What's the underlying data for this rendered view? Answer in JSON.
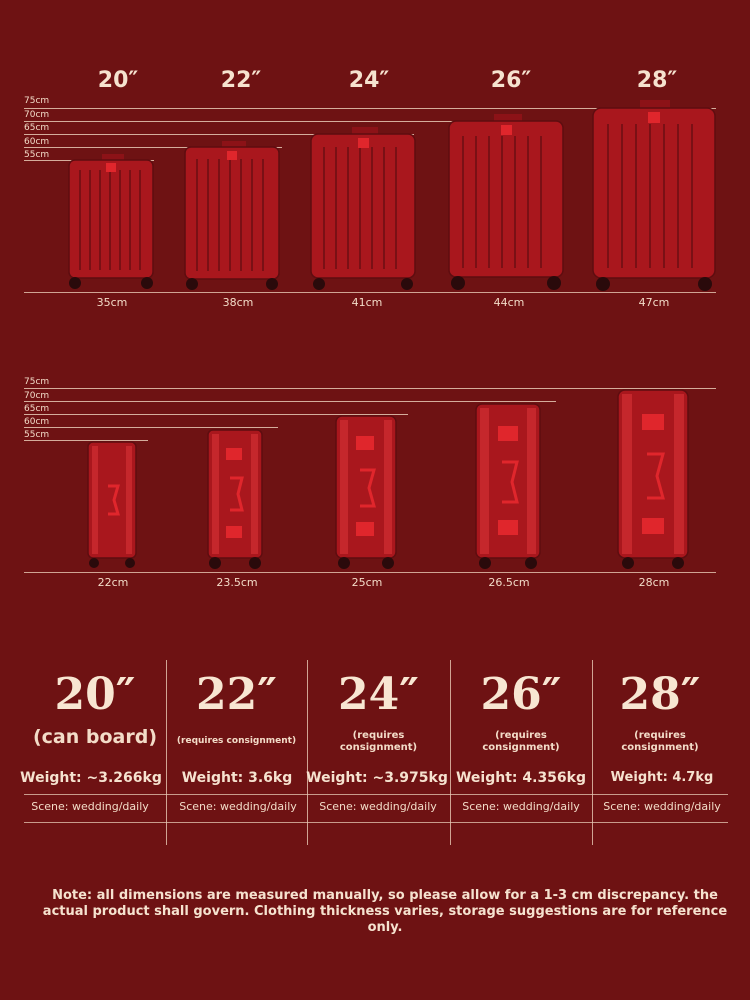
{
  "sizes": [
    "20″",
    "22″",
    "24″",
    "26″",
    "28″"
  ],
  "height_ticks": [
    "75cm",
    "70cm",
    "65cm",
    "60cm",
    "55cm"
  ],
  "front_widths": [
    "35cm",
    "38cm",
    "41cm",
    "44cm",
    "47cm"
  ],
  "side_depths": [
    "22cm",
    "23.5cm",
    "25cm",
    "26.5cm",
    "28cm"
  ],
  "table": {
    "models": [
      {
        "size": "20″",
        "note": "(can board)",
        "weight": "Weight: ~3.266kg",
        "scene": "Scene: wedding/daily"
      },
      {
        "size": "22″",
        "note": "(requires consignment)",
        "weight": "Weight: 3.6kg",
        "scene": "Scene: wedding/daily"
      },
      {
        "size": "24″",
        "note": "(requires\nconsignment)",
        "weight": "Weight: ~3.975kg",
        "scene": "Scene: wedding/daily"
      },
      {
        "size": "26″",
        "note": "(requires\nconsignment)",
        "weight": "Weight: 4.356kg",
        "scene": "Scene: wedding/daily"
      },
      {
        "size": "28″",
        "note": "(requires\nconsignment)",
        "weight": "Weight: 4.7kg",
        "scene": "Scene: wedding/daily"
      }
    ]
  },
  "note": "Note: all dimensions are measured manually, so please allow for a 1-3 cm discrepancy. the actual product shall govern. Clothing thickness varies, storage suggestions are for reference only.",
  "colors": {
    "background": "#6e1213",
    "suitcase": "#a9171d",
    "text": "#f3dcc8"
  }
}
